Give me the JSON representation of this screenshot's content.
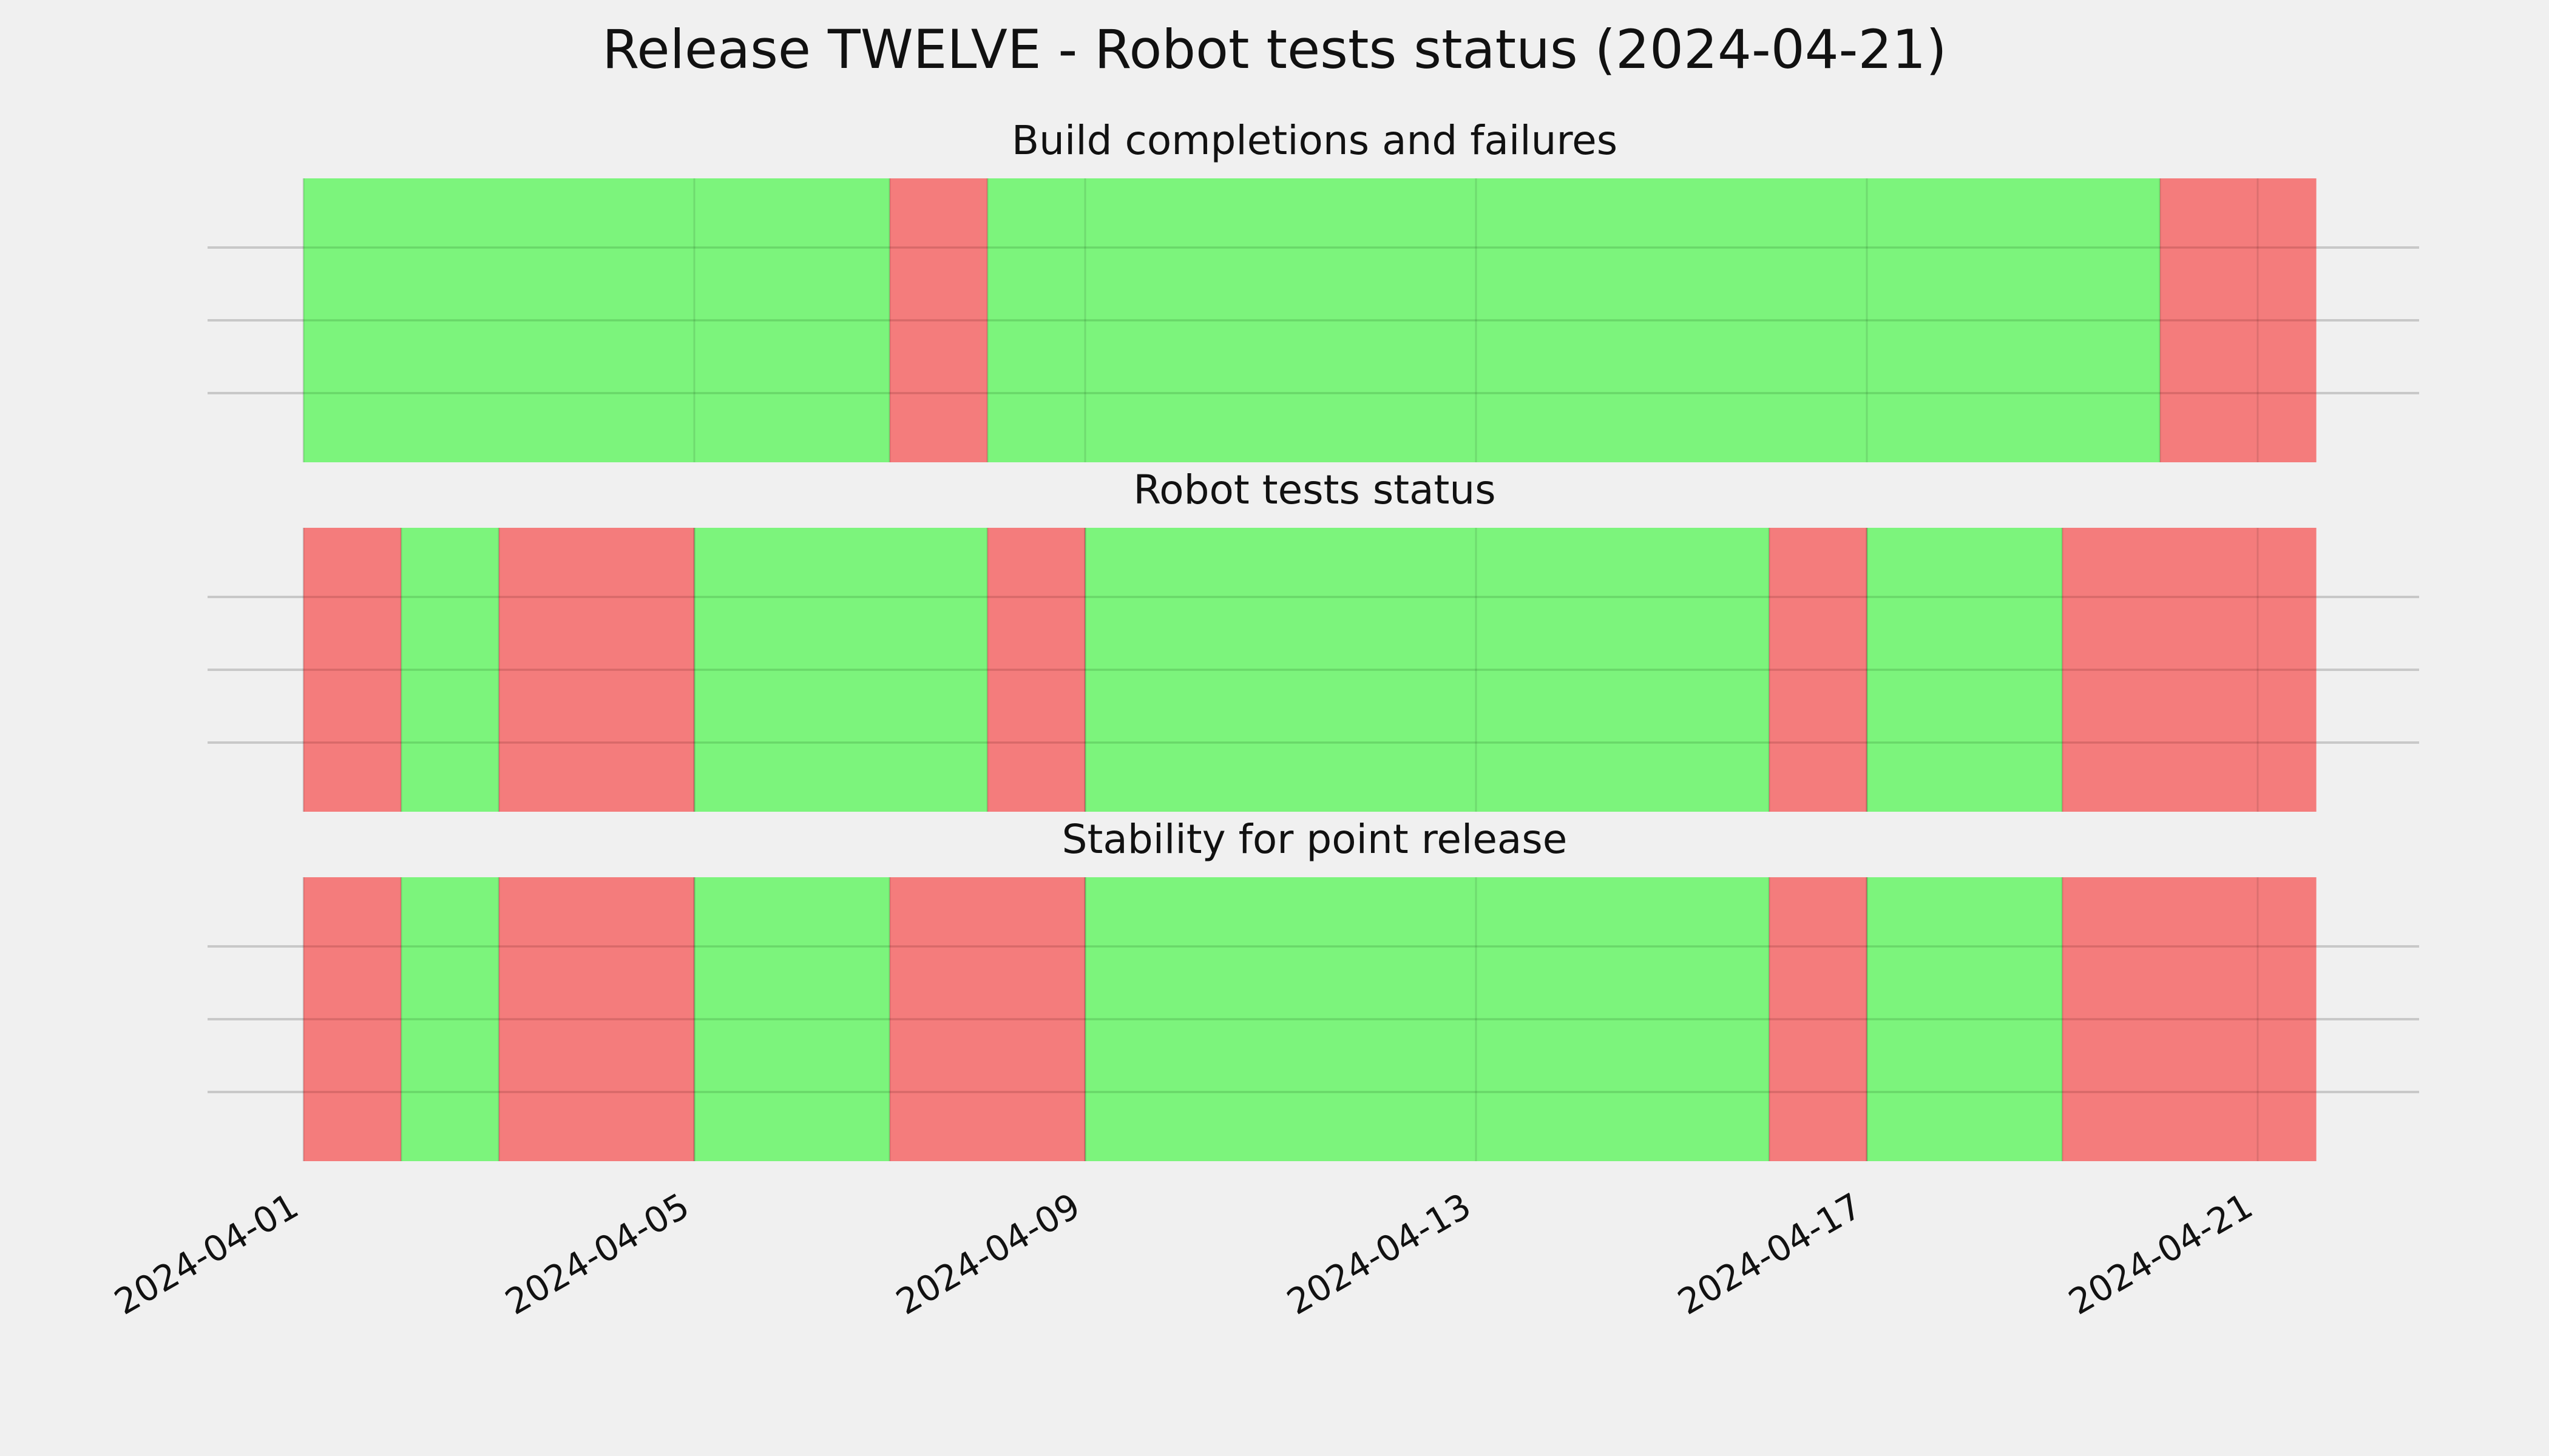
{
  "title": "Release TWELVE - Robot tests status (2024-04-21)",
  "colors": {
    "pass": "#55f555",
    "fail": "#f55555",
    "background": "#f0f0f0"
  },
  "chart_data": {
    "type": "timeline",
    "x_tick_labels": [
      "2024-04-01",
      "2024-04-05",
      "2024-04-09",
      "2024-04-13",
      "2024-04-17",
      "2024-04-21"
    ],
    "xlim": [
      "2024-04-01",
      "2024-04-21 14:24"
    ],
    "grid": true,
    "panels": [
      {
        "title": "Build completions and failures",
        "segments": [
          {
            "start": "2024-04-01",
            "end": "2024-04-07",
            "status": "pass"
          },
          {
            "start": "2024-04-07",
            "end": "2024-04-08",
            "status": "fail"
          },
          {
            "start": "2024-04-08",
            "end": "2024-04-20",
            "status": "pass"
          },
          {
            "start": "2024-04-20",
            "end": "2024-04-21 14:24",
            "status": "fail"
          }
        ]
      },
      {
        "title": "Robot tests status",
        "segments": [
          {
            "start": "2024-04-01",
            "end": "2024-04-02",
            "status": "fail"
          },
          {
            "start": "2024-04-02",
            "end": "2024-04-03",
            "status": "pass"
          },
          {
            "start": "2024-04-03",
            "end": "2024-04-05",
            "status": "fail"
          },
          {
            "start": "2024-04-05",
            "end": "2024-04-08",
            "status": "pass"
          },
          {
            "start": "2024-04-08",
            "end": "2024-04-09",
            "status": "fail"
          },
          {
            "start": "2024-04-09",
            "end": "2024-04-16",
            "status": "pass"
          },
          {
            "start": "2024-04-16",
            "end": "2024-04-17",
            "status": "fail"
          },
          {
            "start": "2024-04-17",
            "end": "2024-04-19",
            "status": "pass"
          },
          {
            "start": "2024-04-19",
            "end": "2024-04-21 14:24",
            "status": "fail"
          }
        ]
      },
      {
        "title": "Stability for point release",
        "segments": [
          {
            "start": "2024-04-01",
            "end": "2024-04-02",
            "status": "fail"
          },
          {
            "start": "2024-04-02",
            "end": "2024-04-03",
            "status": "pass"
          },
          {
            "start": "2024-04-03",
            "end": "2024-04-05",
            "status": "fail"
          },
          {
            "start": "2024-04-05",
            "end": "2024-04-07",
            "status": "pass"
          },
          {
            "start": "2024-04-07",
            "end": "2024-04-09",
            "status": "fail"
          },
          {
            "start": "2024-04-09",
            "end": "2024-04-16",
            "status": "pass"
          },
          {
            "start": "2024-04-16",
            "end": "2024-04-17",
            "status": "fail"
          },
          {
            "start": "2024-04-17",
            "end": "2024-04-19",
            "status": "pass"
          },
          {
            "start": "2024-04-19",
            "end": "2024-04-21 14:24",
            "status": "fail"
          }
        ]
      }
    ]
  }
}
